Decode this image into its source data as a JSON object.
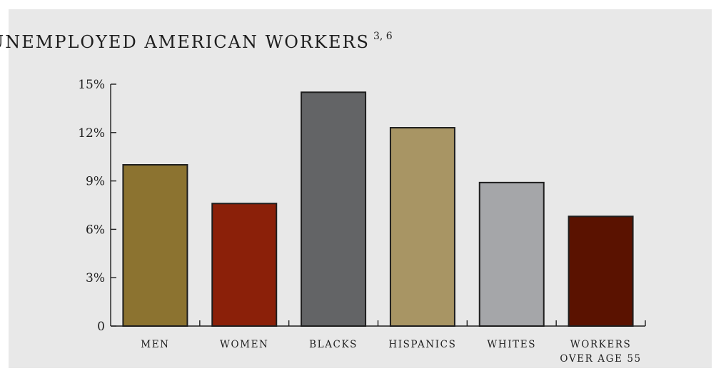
{
  "chart_data": {
    "type": "bar",
    "title": "PERCENT OF UNEMPLOYED AMERICAN WORKERS",
    "title_superscript": "3, 6",
    "xlabel": "",
    "ylabel": "",
    "ylim": [
      0,
      15
    ],
    "grid": false,
    "yticks": [
      {
        "value": 0,
        "label": "0"
      },
      {
        "value": 3,
        "label": "3%"
      },
      {
        "value": 6,
        "label": "6%"
      },
      {
        "value": 9,
        "label": "9%"
      },
      {
        "value": 12,
        "label": "12%"
      },
      {
        "value": 15,
        "label": "15%"
      }
    ],
    "categories": [
      [
        "MEN"
      ],
      [
        "WOMEN"
      ],
      [
        "BLACKS"
      ],
      [
        "HISPANICS"
      ],
      [
        "WHITES"
      ],
      [
        "WORKERS",
        "OVER AGE 55"
      ]
    ],
    "values": [
      10.0,
      7.6,
      14.5,
      12.3,
      8.9,
      6.8
    ],
    "colors": [
      "#8c7330",
      "#8b2009",
      "#636466",
      "#a89564",
      "#a5a6a9",
      "#5a1200"
    ],
    "background_color": "#e8e8e8",
    "text_color": "#1e1e1e"
  }
}
